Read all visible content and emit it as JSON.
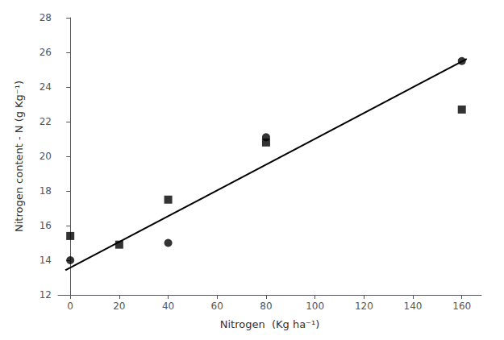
{
  "chart_data": {
    "type": "scatter",
    "xlabel": "Nitrogen  (Kg ha⁻¹)",
    "ylabel": "Nitrogen content - N (g Kg⁻¹)",
    "series": [
      {
        "type": "line",
        "color": "black",
        "line_style": "solid",
        "x": [
          -2,
          162
        ],
        "values": [
          13.42,
          25.62
        ]
      },
      {
        "type": "scatter",
        "marker": "circle",
        "color": "black",
        "x": [
          0,
          40,
          80,
          160
        ],
        "values": [
          14.0,
          15.0,
          21.1,
          25.5
        ]
      },
      {
        "type": "scatter",
        "marker": "square",
        "color": "black",
        "x": [
          0,
          20,
          40,
          80,
          160
        ],
        "values": [
          15.4,
          14.9,
          17.5,
          20.8,
          22.7
        ]
      }
    ],
    "xlim": [
      -5,
      168
    ],
    "ylim": [
      12,
      28
    ],
    "xticks": [
      0,
      20,
      40,
      60,
      80,
      100,
      120,
      140,
      160
    ],
    "yticks": [
      12,
      14,
      16,
      18,
      20,
      22,
      24,
      26,
      28
    ],
    "grid": false
  }
}
